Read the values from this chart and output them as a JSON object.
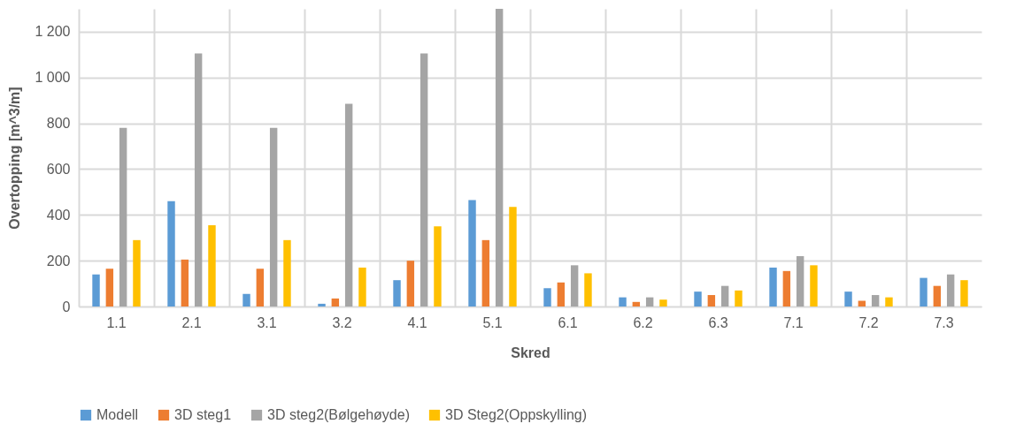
{
  "chart_data": {
    "type": "bar",
    "xlabel": "Skred",
    "ylabel": "Overtopping [m^3/m]",
    "categories": [
      "1.1",
      "2.1",
      "3.1",
      "3.2",
      "4.1",
      "5.1",
      "6.1",
      "6.2",
      "6.3",
      "7.1",
      "7.2",
      "7.3"
    ],
    "series": [
      {
        "name": "Modell",
        "color": "#5b9bd5",
        "values": [
          140,
          460,
          55,
          12,
          115,
          465,
          80,
          40,
          65,
          170,
          65,
          125
        ]
      },
      {
        "name": "3D steg1",
        "color": "#ed7d31",
        "values": [
          165,
          205,
          165,
          35,
          200,
          290,
          105,
          20,
          50,
          155,
          25,
          90
        ]
      },
      {
        "name": "3D steg2(Bølgehøyde)",
        "color": "#a5a5a5",
        "values": [
          780,
          1105,
          780,
          885,
          1105,
          1300,
          180,
          40,
          90,
          220,
          50,
          140
        ]
      },
      {
        "name": "3D Steg2(Oppskylling)",
        "color": "#ffc000",
        "values": [
          290,
          355,
          290,
          170,
          350,
          435,
          145,
          30,
          70,
          180,
          40,
          115
        ]
      }
    ],
    "ylim": [
      0,
      1300
    ],
    "yticks": [
      0,
      200,
      400,
      600,
      800,
      {
        "value": 1000,
        "label": "1 000"
      },
      {
        "value": 1200,
        "label": "1 200"
      }
    ],
    "grid": true,
    "legend": "bottom"
  }
}
